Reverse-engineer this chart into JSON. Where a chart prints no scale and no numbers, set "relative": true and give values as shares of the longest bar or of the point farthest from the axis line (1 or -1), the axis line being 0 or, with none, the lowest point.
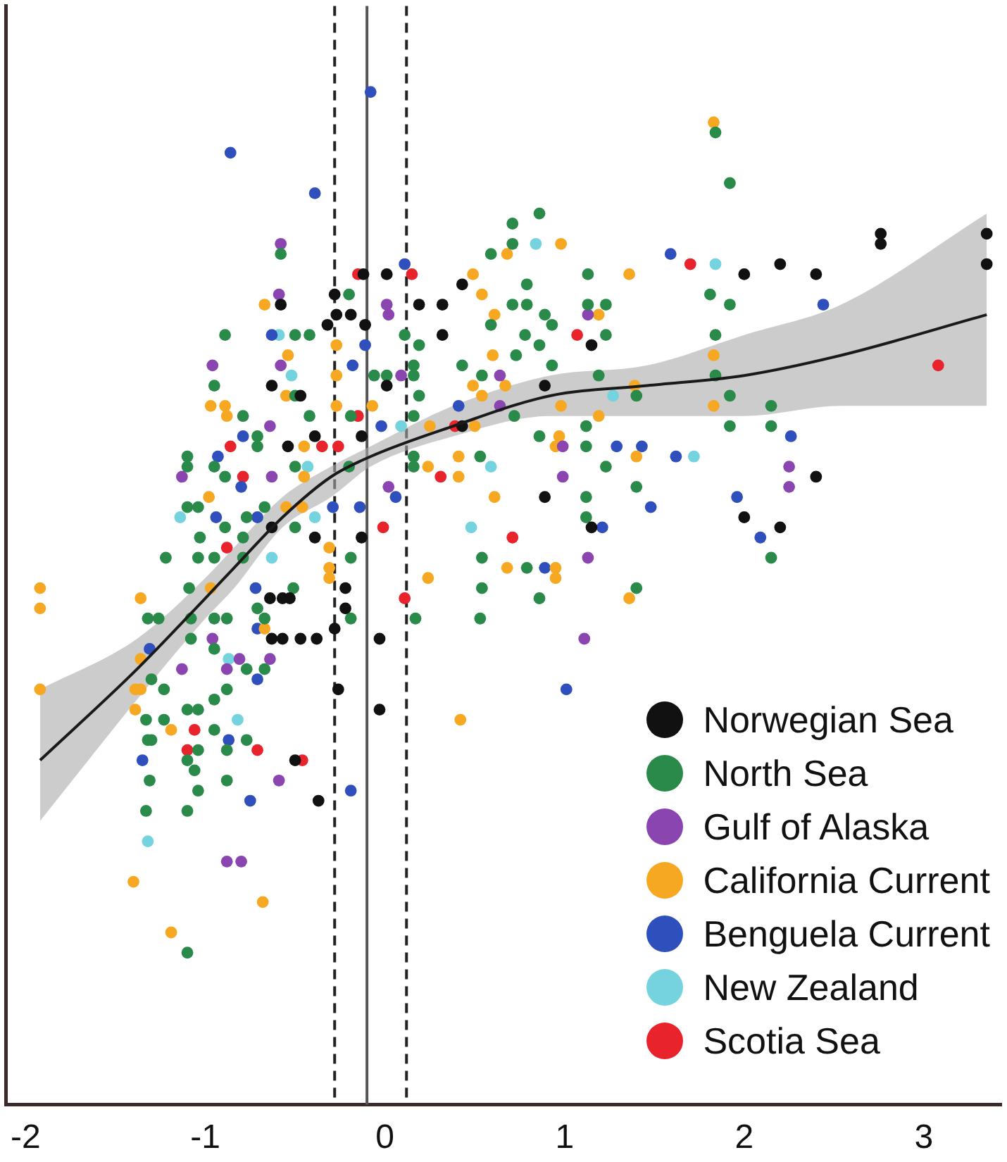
{
  "chart_data": {
    "type": "scatter",
    "relative": true,
    "xlim": [
      -2.11,
      3.43
    ],
    "xticks": [
      -2,
      -1,
      0,
      1,
      2,
      3
    ],
    "tick_labels": "x",
    "grid": false,
    "marker": "circle",
    "legend": "bottom right",
    "ref_lines": [
      {
        "axis": "x",
        "value": -0.1,
        "color": "#555555",
        "line_style": "solid"
      },
      {
        "axis": "x",
        "value": -0.28,
        "color": "#222222",
        "line_style": "dashed"
      },
      {
        "axis": "x",
        "value": 0.12,
        "color": "#222222",
        "line_style": "dashed"
      }
    ],
    "series": [
      {
        "name": "Norwegian Sea",
        "color": "#111111",
        "x": [
          -0.12,
          0.01,
          -0.11,
          0.01,
          -0.13,
          0.19,
          0.32,
          0.32,
          0.43,
          1.15,
          0.89,
          0.43,
          0.89,
          1.15,
          2.0,
          2.2,
          2.4,
          2.76,
          2.76,
          3.35,
          3.35,
          2.4,
          2.0,
          2.2,
          -0.13,
          -0.28,
          -0.19,
          -0.32,
          -0.27,
          -0.58,
          -0.63,
          -0.47,
          -0.39,
          -0.54,
          -0.63,
          -0.39,
          -0.64,
          -0.57,
          -0.53,
          -0.22,
          -0.22,
          -0.63,
          -0.57,
          -0.47,
          -0.38,
          -0.28,
          -0.03,
          -0.26,
          -0.03,
          -0.5,
          -0.37
        ],
        "values": [
          0.82,
          0.82,
          0.77,
          0.71,
          0.66,
          0.79,
          0.79,
          0.76,
          0.81,
          0.75,
          0.71,
          0.67,
          0.6,
          0.57,
          0.82,
          0.83,
          0.82,
          0.86,
          0.85,
          0.86,
          0.83,
          0.62,
          0.58,
          0.57,
          0.56,
          0.8,
          0.78,
          0.77,
          0.78,
          0.79,
          0.71,
          0.7,
          0.66,
          0.65,
          0.57,
          0.56,
          0.5,
          0.5,
          0.5,
          0.51,
          0.49,
          0.46,
          0.46,
          0.46,
          0.46,
          0.47,
          0.46,
          0.41,
          0.39,
          0.34,
          0.3
        ]
      },
      {
        "name": "North Sea",
        "color": "#2a8a4a",
        "x": [
          0.86,
          0.71,
          0.71,
          0.59,
          1.84,
          1.92,
          1.13,
          0.79,
          0.71,
          0.79,
          1.23,
          1.13,
          0.89,
          0.93,
          0.59,
          0.78,
          0.86,
          1.23,
          0.73,
          0.19,
          0.11,
          0.43,
          0.93,
          1.19,
          1.84,
          1.81,
          1.92,
          1.84,
          1.92,
          1.92,
          1.4,
          2.15,
          2.15,
          0.72,
          0.86,
          1.12,
          1.12,
          1.23,
          1.4,
          1.12,
          1.12,
          2.15,
          1.4,
          0.86,
          0.79,
          0.54,
          0.54,
          0.53,
          0.17,
          0.16,
          0.16,
          0.19,
          0.16,
          0.16,
          0.16,
          0.53,
          0.54,
          0.01,
          -0.06,
          -0.58,
          -0.2,
          -0.89,
          -0.5,
          -0.42,
          -0.95,
          -0.79,
          -0.71,
          -0.71,
          -0.5,
          -0.42,
          -1.1,
          -1.1,
          -0.95,
          -0.89,
          -0.5,
          -1.1,
          -1.04,
          -0.89,
          -0.77,
          -0.67,
          -0.5,
          -1.03,
          -0.79,
          -1.22,
          -1.04,
          -0.95,
          -0.79,
          -0.19,
          -1.09,
          -0.51,
          -0.2,
          -0.19,
          -1.32,
          -1.26,
          -1.08,
          -0.95,
          -0.88,
          -0.71,
          -0.67,
          -0.19,
          -1.08,
          -0.95,
          -0.77,
          -0.67,
          -1.3,
          -1.23,
          -0.88,
          -0.95,
          -1.1,
          -1.04,
          -1.33,
          -1.23,
          -1.3,
          -1.32,
          -0.95,
          -0.77,
          -1.04,
          -0.88,
          -1.1,
          -1.06,
          -1.31,
          -0.88,
          -1.04,
          -1.33,
          -1.1,
          -1.1
        ],
        "values": [
          0.88,
          0.87,
          0.85,
          0.84,
          0.96,
          0.91,
          0.82,
          0.81,
          0.79,
          0.79,
          0.79,
          0.79,
          0.78,
          0.77,
          0.77,
          0.76,
          0.75,
          0.76,
          0.74,
          0.75,
          0.76,
          0.73,
          0.73,
          0.72,
          0.72,
          0.8,
          0.79,
          0.76,
          0.7,
          0.67,
          0.7,
          0.69,
          0.67,
          0.68,
          0.66,
          0.67,
          0.65,
          0.63,
          0.61,
          0.6,
          0.58,
          0.54,
          0.51,
          0.5,
          0.53,
          0.54,
          0.51,
          0.48,
          0.48,
          0.73,
          0.72,
          0.7,
          0.68,
          0.64,
          0.63,
          0.64,
          0.72,
          0.72,
          0.72,
          0.84,
          0.8,
          0.76,
          0.76,
          0.76,
          0.71,
          0.68,
          0.66,
          0.65,
          0.7,
          0.68,
          0.64,
          0.63,
          0.63,
          0.62,
          0.63,
          0.59,
          0.59,
          0.57,
          0.58,
          0.59,
          0.57,
          0.56,
          0.56,
          0.54,
          0.54,
          0.54,
          0.54,
          0.54,
          0.51,
          0.51,
          0.63,
          0.68,
          0.48,
          0.48,
          0.48,
          0.48,
          0.48,
          0.49,
          0.48,
          0.48,
          0.46,
          0.45,
          0.43,
          0.43,
          0.42,
          0.41,
          0.41,
          0.4,
          0.39,
          0.39,
          0.38,
          0.38,
          0.36,
          0.36,
          0.37,
          0.36,
          0.35,
          0.35,
          0.34,
          0.33,
          0.32,
          0.32,
          0.31,
          0.29,
          0.29,
          0.15
        ]
      },
      {
        "name": "Gulf of Alaska",
        "color": "#8a45b0",
        "x": [
          -0.58,
          -0.59,
          0.01,
          -0.96,
          -0.58,
          -0.64,
          -1.13,
          -0.63,
          -0.96,
          -0.81,
          -0.64,
          -1.13,
          -0.88,
          -0.59,
          -0.88,
          -0.8,
          0.02,
          0.09,
          0.64,
          0.64,
          0.99,
          0.99,
          1.13,
          0.02,
          2.25,
          2.25,
          1.13,
          1.11
        ],
        "values": [
          0.85,
          0.8,
          0.79,
          0.73,
          0.73,
          0.67,
          0.62,
          0.62,
          0.46,
          0.44,
          0.44,
          0.43,
          0.43,
          0.32,
          0.24,
          0.24,
          0.78,
          0.72,
          0.72,
          0.69,
          0.65,
          0.62,
          0.78,
          0.61,
          0.63,
          0.61,
          0.54,
          0.46
        ]
      },
      {
        "name": "California Current",
        "color": "#f7a823",
        "x": [
          -0.67,
          -0.54,
          -0.27,
          -0.27,
          -0.27,
          -0.97,
          -0.89,
          -0.88,
          -0.55,
          -0.45,
          -0.45,
          -0.98,
          -0.55,
          -0.46,
          -0.31,
          -0.31,
          -1.92,
          -1.92,
          -1.36,
          -0.97,
          -0.67,
          -1.36,
          -1.36,
          -1.39,
          -1.92,
          -1.39,
          -1.19,
          -1.4,
          -0.68,
          -1.19,
          -0.31,
          1.83,
          0.98,
          0.68,
          0.49,
          0.54,
          0.61,
          1.19,
          1.36,
          0.6,
          0.49,
          0.67,
          0.54,
          1.39,
          1.83,
          1.83,
          0.98,
          1.19,
          0.5,
          0.25,
          0.97,
          0.95,
          1.4,
          0.24,
          0.41,
          0.41,
          0.61,
          0.24,
          0.68,
          0.95,
          0.95,
          1.36,
          -0.07,
          0.42
        ],
        "values": [
          0.79,
          0.74,
          0.75,
          0.72,
          0.69,
          0.69,
          0.69,
          0.68,
          0.7,
          0.65,
          0.62,
          0.6,
          0.59,
          0.59,
          0.55,
          0.53,
          0.51,
          0.49,
          0.5,
          0.51,
          0.47,
          0.44,
          0.41,
          0.41,
          0.41,
          0.39,
          0.37,
          0.22,
          0.2,
          0.17,
          0.52,
          0.97,
          0.85,
          0.84,
          0.82,
          0.8,
          0.78,
          0.78,
          0.82,
          0.74,
          0.71,
          0.71,
          0.7,
          0.71,
          0.74,
          0.69,
          0.69,
          0.68,
          0.67,
          0.67,
          0.66,
          0.65,
          0.64,
          0.63,
          0.64,
          0.62,
          0.6,
          0.52,
          0.53,
          0.53,
          0.52,
          0.5,
          0.69,
          0.38
        ]
      },
      {
        "name": "Benguela Current",
        "color": "#2f4fbd",
        "x": [
          -0.08,
          -0.86,
          -0.39,
          -0.63,
          -0.11,
          -0.18,
          -0.79,
          -0.02,
          -0.93,
          -0.8,
          -0.94,
          -0.71,
          -0.29,
          -0.14,
          -0.72,
          -0.71,
          -1.31,
          -0.71,
          -0.87,
          -1.35,
          -0.75,
          -0.19,
          0.11,
          1.59,
          2.44,
          0.41,
          1.29,
          1.43,
          1.62,
          2.26,
          1.48,
          1.96,
          2.09,
          0.89,
          1.21,
          1.01,
          0.06
        ],
        "values": [
          1.0,
          0.94,
          0.9,
          0.76,
          0.75,
          0.73,
          0.66,
          0.67,
          0.64,
          0.61,
          0.58,
          0.58,
          0.59,
          0.59,
          0.51,
          0.47,
          0.45,
          0.42,
          0.36,
          0.34,
          0.3,
          0.31,
          0.83,
          0.84,
          0.79,
          0.69,
          0.65,
          0.65,
          0.64,
          0.66,
          0.59,
          0.6,
          0.56,
          0.53,
          0.57,
          0.41,
          0.6
        ]
      },
      {
        "name": "New Zealand",
        "color": "#74d3de",
        "x": [
          -0.59,
          -0.52,
          -0.43,
          -1.14,
          -0.39,
          -0.63,
          -0.87,
          -0.82,
          -1.32,
          0.84,
          1.84,
          0.09,
          1.27,
          1.72,
          0.59,
          0.48
        ],
        "values": [
          0.76,
          0.72,
          0.63,
          0.58,
          0.58,
          0.54,
          0.44,
          0.38,
          0.26,
          0.85,
          0.83,
          0.67,
          0.7,
          0.64,
          0.63,
          0.57
        ]
      },
      {
        "name": "Scotia Sea",
        "color": "#e8232c",
        "x": [
          -0.15,
          -0.15,
          -0.35,
          -0.26,
          -0.86,
          -0.79,
          -0.01,
          -0.88,
          -1.06,
          -1.1,
          -0.71,
          -0.46,
          0.15,
          1.7,
          1.07,
          0.39,
          0.31,
          0.71,
          0.11,
          3.08
        ],
        "values": [
          0.82,
          0.68,
          0.65,
          0.65,
          0.65,
          0.62,
          0.57,
          0.55,
          0.37,
          0.35,
          0.35,
          0.34,
          0.82,
          0.83,
          0.76,
          0.67,
          0.62,
          0.56,
          0.5,
          0.73
        ]
      },
      {
        "type": "line",
        "color": "#1a1a1a",
        "marker": "none",
        "x": [
          -1.92,
          -1.38,
          -1.0,
          -0.84,
          -0.57,
          -0.3,
          -0.08,
          0.38,
          0.92,
          1.46,
          2.0,
          2.54,
          3.35
        ],
        "values": [
          0.34,
          0.43,
          0.5,
          0.53,
          0.58,
          0.62,
          0.64,
          0.67,
          0.7,
          0.71,
          0.72,
          0.74,
          0.78
        ],
        "lower": [
          0.28,
          0.4,
          0.48,
          0.51,
          0.57,
          0.6,
          0.63,
          0.66,
          0.68,
          0.68,
          0.68,
          0.69,
          0.69
        ],
        "upper": [
          0.41,
          0.46,
          0.52,
          0.55,
          0.6,
          0.63,
          0.65,
          0.69,
          0.72,
          0.73,
          0.76,
          0.79,
          0.88
        ]
      }
    ]
  }
}
